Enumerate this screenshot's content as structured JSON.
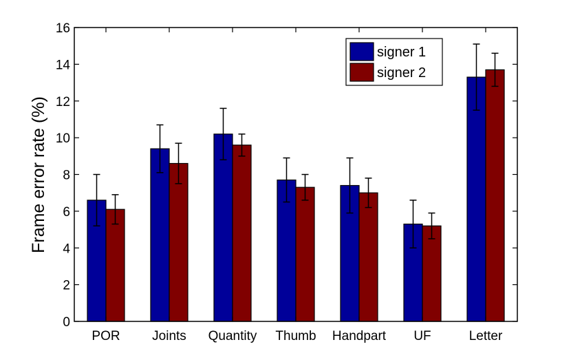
{
  "chart_data": {
    "type": "bar",
    "title": "",
    "xlabel": "",
    "ylabel": "Frame error rate (%)",
    "ylim": [
      0,
      16
    ],
    "yticks": [
      0,
      2,
      4,
      6,
      8,
      10,
      12,
      14,
      16
    ],
    "grid": false,
    "legend_position": "top-right",
    "categories": [
      "POR",
      "Joints",
      "Quantity",
      "Thumb",
      "Handpart",
      "UF",
      "Letter"
    ],
    "series": [
      {
        "name": "signer 1",
        "color": "#000099",
        "values": [
          6.6,
          9.4,
          10.2,
          7.7,
          7.4,
          5.3,
          13.3
        ],
        "error": [
          1.4,
          1.3,
          1.4,
          1.2,
          1.5,
          1.3,
          1.8
        ]
      },
      {
        "name": "signer 2",
        "color": "#800000",
        "values": [
          6.1,
          8.6,
          9.6,
          7.3,
          7.0,
          5.2,
          13.7
        ],
        "error": [
          0.8,
          1.1,
          0.6,
          0.7,
          0.8,
          0.7,
          0.9
        ]
      }
    ]
  }
}
